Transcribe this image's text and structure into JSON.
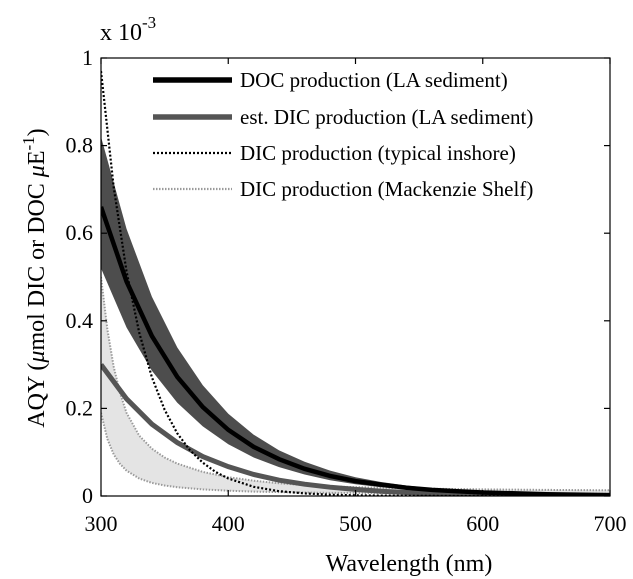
{
  "chart_data": {
    "type": "line",
    "xlabel": "Wavelength (nm)",
    "ylabel_parts": [
      "AQY (",
      "μ",
      "mol DIC or DOC ",
      "μ",
      "E",
      "-1",
      ")"
    ],
    "y_multiplier": "x 10",
    "y_multiplier_exp": "-3",
    "xlim": [
      300,
      700
    ],
    "ylim": [
      0,
      1
    ],
    "xticks": [
      300,
      400,
      500,
      600,
      700
    ],
    "yticks": [
      0,
      0.2,
      0.4,
      0.6,
      0.8,
      1
    ],
    "xtick_labels": [
      "300",
      "400",
      "500",
      "600",
      "700"
    ],
    "ytick_labels": [
      "0",
      "0.2",
      "0.4",
      "0.6",
      "0.8",
      "1"
    ],
    "grid": false,
    "legend_position": "top-right",
    "series": [
      {
        "name": "DOC production (LA sediment)",
        "style": "solid-thick",
        "color": "#000000",
        "x": [
          300,
          320,
          340,
          360,
          380,
          400,
          420,
          440,
          460,
          480,
          500,
          520,
          540,
          560,
          580,
          600,
          650,
          700
        ],
        "y": [
          0.66,
          0.49,
          0.365,
          0.272,
          0.203,
          0.151,
          0.112,
          0.084,
          0.062,
          0.046,
          0.034,
          0.026,
          0.019,
          0.014,
          0.011,
          0.008,
          0.004,
          0.002
        ],
        "band_upper": [
          0.82,
          0.61,
          0.455,
          0.339,
          0.253,
          0.188,
          0.14,
          0.104,
          0.078,
          0.058,
          0.043,
          0.032,
          0.024,
          0.018,
          0.013,
          0.01,
          0.005,
          0.003
        ],
        "band_lower": [
          0.52,
          0.385,
          0.286,
          0.213,
          0.159,
          0.118,
          0.088,
          0.066,
          0.049,
          0.036,
          0.027,
          0.02,
          0.015,
          0.011,
          0.008,
          0.006,
          0.003,
          0.002
        ]
      },
      {
        "name": "est. DIC production (LA sediment)",
        "style": "solid-gray",
        "color": "#555555",
        "x": [
          300,
          320,
          340,
          360,
          380,
          400,
          420,
          440,
          460,
          480,
          500,
          520,
          540,
          560,
          580,
          600,
          650,
          700
        ],
        "y": [
          0.3,
          0.222,
          0.164,
          0.122,
          0.09,
          0.067,
          0.049,
          0.036,
          0.027,
          0.02,
          0.015,
          0.011,
          0.008,
          0.006,
          0.005,
          0.004,
          0.002,
          0.001
        ]
      },
      {
        "name": "DIC production (typical inshore)",
        "style": "dotted-black",
        "color": "#000000",
        "x": [
          300,
          310,
          320,
          330,
          340,
          350,
          360,
          370,
          380,
          390,
          400,
          420,
          440,
          460,
          480,
          500,
          520,
          540,
          560,
          600,
          700
        ],
        "y": [
          0.97,
          0.705,
          0.513,
          0.373,
          0.271,
          0.197,
          0.143,
          0.104,
          0.076,
          0.055,
          0.04,
          0.021,
          0.011,
          0.006,
          0.003,
          0.0016,
          0.0009,
          0.0005,
          0.0002,
          0.0001,
          0.0
        ],
        "band_upper": [],
        "band_lower": []
      },
      {
        "name": "DIC production (Mackenzie Shelf)",
        "style": "gray-dotted-band",
        "color": "#9a9a9a",
        "x": [
          300,
          305,
          310,
          315,
          320,
          330,
          340,
          350,
          360,
          380,
          400,
          420,
          440,
          460,
          480,
          500,
          550,
          600,
          650,
          700
        ],
        "band_upper": [
          0.5,
          0.38,
          0.295,
          0.235,
          0.19,
          0.138,
          0.108,
          0.088,
          0.074,
          0.055,
          0.043,
          0.035,
          0.029,
          0.025,
          0.022,
          0.02,
          0.017,
          0.015,
          0.014,
          0.013
        ],
        "band_lower": [
          0.19,
          0.13,
          0.095,
          0.073,
          0.058,
          0.04,
          0.03,
          0.024,
          0.02,
          0.015,
          0.012,
          0.01,
          0.009,
          0.008,
          0.007,
          0.007,
          0.006,
          0.006,
          0.005,
          0.005
        ]
      }
    ]
  }
}
